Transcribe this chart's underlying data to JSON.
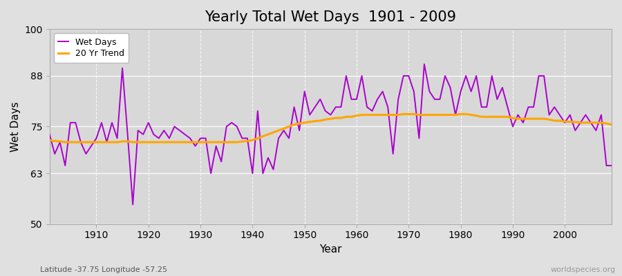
{
  "title": "Yearly Total Wet Days  1901 - 2009",
  "xlabel": "Year",
  "ylabel": "Wet Days",
  "lat_lon_label": "Latitude -37.75 Longitude -57.25",
  "watermark": "worldspecies.org",
  "years": [
    1901,
    1902,
    1903,
    1904,
    1905,
    1906,
    1907,
    1908,
    1909,
    1910,
    1911,
    1912,
    1913,
    1914,
    1915,
    1916,
    1917,
    1918,
    1919,
    1920,
    1921,
    1922,
    1923,
    1924,
    1925,
    1926,
    1927,
    1928,
    1929,
    1930,
    1931,
    1932,
    1933,
    1934,
    1935,
    1936,
    1937,
    1938,
    1939,
    1940,
    1941,
    1942,
    1943,
    1944,
    1945,
    1946,
    1947,
    1948,
    1949,
    1950,
    1951,
    1952,
    1953,
    1954,
    1955,
    1956,
    1957,
    1958,
    1959,
    1960,
    1961,
    1962,
    1963,
    1964,
    1965,
    1966,
    1967,
    1968,
    1969,
    1970,
    1971,
    1972,
    1973,
    1974,
    1975,
    1976,
    1977,
    1978,
    1979,
    1980,
    1981,
    1982,
    1983,
    1984,
    1985,
    1986,
    1987,
    1988,
    1989,
    1990,
    1991,
    1992,
    1993,
    1994,
    1995,
    1996,
    1997,
    1998,
    1999,
    2000,
    2001,
    2002,
    2003,
    2004,
    2005,
    2006,
    2007,
    2008,
    2009
  ],
  "wet_days": [
    73,
    68,
    71,
    65,
    76,
    76,
    71,
    68,
    70,
    72,
    76,
    71,
    76,
    72,
    90,
    73,
    55,
    74,
    73,
    76,
    73,
    72,
    74,
    72,
    75,
    74,
    73,
    72,
    70,
    72,
    72,
    63,
    70,
    66,
    75,
    76,
    75,
    72,
    72,
    63,
    79,
    63,
    67,
    64,
    72,
    74,
    72,
    80,
    74,
    84,
    78,
    80,
    82,
    79,
    78,
    80,
    80,
    88,
    82,
    82,
    88,
    80,
    79,
    82,
    84,
    80,
    68,
    82,
    88,
    88,
    84,
    72,
    91,
    84,
    82,
    82,
    88,
    85,
    78,
    84,
    88,
    84,
    88,
    80,
    80,
    88,
    82,
    85,
    80,
    75,
    78,
    76,
    80,
    80,
    88,
    88,
    78,
    80,
    78,
    76,
    78,
    74,
    76,
    78,
    76,
    74,
    78,
    65,
    65
  ],
  "trend_values": [
    71.5,
    71.3,
    71.2,
    71.0,
    71.0,
    71.0,
    71.0,
    71.0,
    71.0,
    71.0,
    71.0,
    71.0,
    71.0,
    71.0,
    71.2,
    71.2,
    71.0,
    71.0,
    71.0,
    71.0,
    71.0,
    71.0,
    71.0,
    71.0,
    71.0,
    71.0,
    71.0,
    71.0,
    71.0,
    71.0,
    71.0,
    71.0,
    71.0,
    71.0,
    71.0,
    71.0,
    71.0,
    71.2,
    71.3,
    71.5,
    72.0,
    72.5,
    73.0,
    73.5,
    74.0,
    74.5,
    75.0,
    75.5,
    75.8,
    76.0,
    76.2,
    76.4,
    76.5,
    76.8,
    77.0,
    77.2,
    77.2,
    77.5,
    77.5,
    77.8,
    78.0,
    78.0,
    78.0,
    78.0,
    78.0,
    78.0,
    78.0,
    78.0,
    78.2,
    78.2,
    78.2,
    78.0,
    78.0,
    78.0,
    78.0,
    78.0,
    78.0,
    78.0,
    78.0,
    78.2,
    78.2,
    78.0,
    77.8,
    77.5,
    77.5,
    77.5,
    77.5,
    77.5,
    77.5,
    77.2,
    77.0,
    77.0,
    77.0,
    77.0,
    77.0,
    77.0,
    76.8,
    76.5,
    76.5,
    76.3,
    76.2,
    76.2,
    76.0,
    76.0,
    76.0,
    76.0,
    76.0,
    75.8,
    75.5
  ],
  "wet_days_color": "#AA00CC",
  "trend_color": "#FFA500",
  "bg_color": "#E0E0E0",
  "plot_bg_color": "#D8D8D8",
  "grid_color": "#FFFFFF",
  "spine_color": "#AAAAAA",
  "ylim": [
    50,
    100
  ],
  "yticks": [
    50,
    63,
    75,
    88,
    100
  ],
  "xlim": [
    1901,
    2009
  ],
  "xticks": [
    1910,
    1920,
    1930,
    1940,
    1950,
    1960,
    1970,
    1980,
    1990,
    2000
  ],
  "title_fontsize": 15,
  "axis_label_fontsize": 11,
  "tick_fontsize": 10,
  "legend_fontsize": 9,
  "wet_days_linewidth": 1.4,
  "trend_linewidth": 2.2
}
